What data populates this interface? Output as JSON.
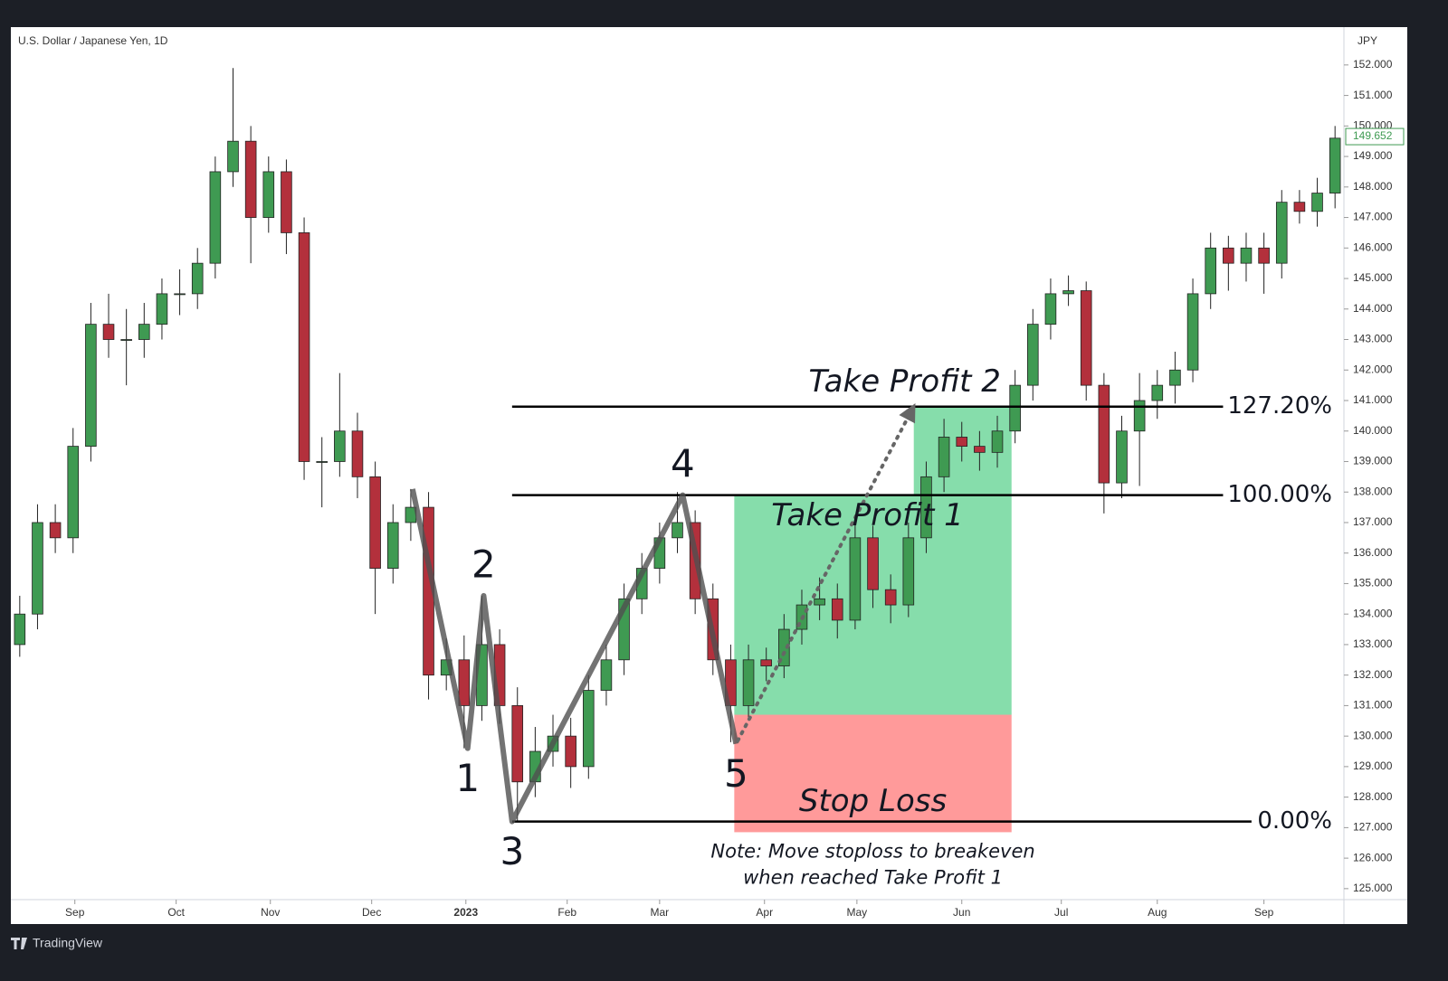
{
  "chart_data": {
    "type": "candlestick",
    "title": "U.S. Dollar / Japanese Yen, 1D",
    "y_axis_title": "JPY",
    "footer": "TradingView",
    "up_color": "#3f9a52",
    "down_color": "#b3303c",
    "open": [
      133,
      134,
      137,
      136.5,
      139.5,
      143.5,
      143,
      143,
      143.5,
      144.5,
      144.5,
      145.5,
      148.5,
      149.5,
      147,
      148.5,
      146.5,
      139,
      139,
      140,
      138.5,
      135.5,
      137,
      137.5,
      132,
      132.5,
      131,
      133,
      131,
      128.5,
      129.5,
      130,
      129,
      131.5,
      132.5,
      134.5,
      135.5,
      136.5,
      137,
      134.5,
      132.5,
      131,
      132.5,
      132.3,
      133.5,
      134.3,
      134.5,
      133.8,
      136.5,
      134.8,
      134.3,
      136.5,
      138.5,
      139.8,
      139.5,
      139.3,
      140,
      141.5,
      143.5,
      144.5,
      144.6,
      141.5,
      138.3,
      140,
      141,
      141.5,
      142,
      144.5,
      146,
      145.5,
      146,
      145.5,
      147.5,
      147.2,
      147.8
    ],
    "high": [
      134.6,
      137.6,
      137.6,
      140.1,
      144.2,
      144.5,
      144,
      144.2,
      145,
      145.3,
      146,
      149,
      151.9,
      150,
      149,
      148.9,
      147,
      139.8,
      141.9,
      140.6,
      139,
      137.6,
      138.1,
      138,
      133.2,
      133.3,
      134.6,
      133.5,
      131.6,
      130.3,
      130.7,
      130.6,
      132,
      133,
      135,
      136,
      137,
      138,
      137.4,
      135,
      133,
      133,
      132.9,
      134,
      134.8,
      135.2,
      135,
      137,
      136.9,
      135.3,
      137,
      139,
      140.4,
      140.3,
      140,
      140.5,
      142,
      144,
      145,
      145.1,
      144.9,
      141.9,
      140.5,
      141.9,
      142,
      142.6,
      145,
      146.5,
      146.4,
      146.5,
      146.5,
      147.9,
      147.9,
      148.3,
      150
    ],
    "low": [
      132.6,
      133.5,
      136,
      136,
      139,
      142.4,
      141.5,
      142.4,
      143,
      143.8,
      144,
      145,
      148,
      145.5,
      146.5,
      145.8,
      138.4,
      137.5,
      138.5,
      137.8,
      134,
      135,
      136.4,
      131.2,
      131.5,
      129.6,
      130.5,
      130.4,
      127.2,
      128,
      129,
      128.3,
      128.6,
      131,
      132,
      134,
      135,
      136,
      134,
      132,
      129.8,
      130.6,
      131.8,
      131.9,
      133,
      133.8,
      133.2,
      133.5,
      134.2,
      133.7,
      133.9,
      136,
      138,
      139,
      138.7,
      138.8,
      139.6,
      141,
      143,
      144.1,
      141,
      137.3,
      137.8,
      138.2,
      140.4,
      140.9,
      141.6,
      144,
      144.6,
      144.9,
      144.5,
      145,
      146.8,
      146.7,
      147.3
    ],
    "close": [
      134,
      137,
      136.5,
      139.5,
      143.5,
      143,
      143,
      143.5,
      144.5,
      144.5,
      145.5,
      148.5,
      149.5,
      147,
      148.5,
      146.5,
      139,
      139,
      140,
      138.5,
      135.5,
      137,
      137.5,
      132,
      132.5,
      131,
      133,
      131,
      128.5,
      129.5,
      130,
      129,
      131.5,
      132.5,
      134.5,
      135.5,
      136.5,
      137,
      134.5,
      132.5,
      131,
      132.5,
      132.3,
      133.5,
      134.3,
      134.5,
      133.8,
      136.5,
      134.8,
      134.3,
      136.5,
      138.5,
      139.8,
      139.5,
      139.3,
      140,
      141.5,
      143.5,
      144.5,
      144.6,
      141.5,
      138.3,
      140,
      141,
      141.5,
      142,
      144.5,
      146,
      145.5,
      146,
      145.5,
      147.5,
      147.2,
      147.8,
      149.6
    ],
    "xlim": [
      -0.5,
      74.5
    ],
    "xticks": [
      {
        "value": 3.1,
        "label": "Sep"
      },
      {
        "value": 8.8,
        "label": "Oct"
      },
      {
        "value": 14.1,
        "label": "Nov"
      },
      {
        "value": 19.8,
        "label": "Dec"
      },
      {
        "value": 25.1,
        "label": "2023",
        "bold": true
      },
      {
        "value": 30.8,
        "label": "Feb"
      },
      {
        "value": 36,
        "label": "Mar"
      },
      {
        "value": 41.9,
        "label": "Apr"
      },
      {
        "value": 47.1,
        "label": "May"
      },
      {
        "value": 53,
        "label": "Jun"
      },
      {
        "value": 58.6,
        "label": "Jul"
      },
      {
        "value": 64,
        "label": "Aug"
      },
      {
        "value": 70,
        "label": "Sep"
      }
    ],
    "ylim": [
      124.64,
      153.24
    ],
    "yticks": [
      {
        "value": 152,
        "label": "152.000"
      },
      {
        "value": 151,
        "label": "151.000"
      },
      {
        "value": 150,
        "label": "150.000"
      },
      {
        "value": 149,
        "label": "149.000"
      },
      {
        "value": 148,
        "label": "148.000"
      },
      {
        "value": 147,
        "label": "147.000"
      },
      {
        "value": 146,
        "label": "146.000"
      },
      {
        "value": 145,
        "label": "145.000"
      },
      {
        "value": 144,
        "label": "144.000"
      },
      {
        "value": 143,
        "label": "143.000"
      },
      {
        "value": 142,
        "label": "142.000"
      },
      {
        "value": 141,
        "label": "141.000"
      },
      {
        "value": 140,
        "label": "140.000"
      },
      {
        "value": 139,
        "label": "139.000"
      },
      {
        "value": 138,
        "label": "138.000"
      },
      {
        "value": 137,
        "label": "137.000"
      },
      {
        "value": 136,
        "label": "136.000"
      },
      {
        "value": 135,
        "label": "135.000"
      },
      {
        "value": 134,
        "label": "134.000"
      },
      {
        "value": 133,
        "label": "133.000"
      },
      {
        "value": 132,
        "label": "132.000"
      },
      {
        "value": 131,
        "label": "131.000"
      },
      {
        "value": 130,
        "label": "130.000"
      },
      {
        "value": 129,
        "label": "129.000"
      },
      {
        "value": 128,
        "label": "128.000"
      },
      {
        "value": 127,
        "label": "127.000"
      },
      {
        "value": 126,
        "label": "126.000"
      },
      {
        "value": 125,
        "label": "125.000"
      }
    ],
    "last_price": 149.652,
    "levels": [
      {
        "label": "127.20%",
        "price": 140.8,
        "start": 27.7,
        "end": 67.7
      },
      {
        "label": "100.00%",
        "price": 137.9,
        "start": 27.7,
        "end": 67.7
      },
      {
        "label": "0.00%",
        "price": 127.2,
        "start": 27.7,
        "end": 69.3
      }
    ],
    "wave_x": [
      22.1,
      25.2,
      26.1,
      27.7,
      37.3,
      40.3
    ],
    "wave_y": [
      138.1,
      129.6,
      134.6,
      127.2,
      137.9,
      129.75
    ],
    "wave_labels": [
      null,
      "1",
      "2",
      "3",
      "4",
      "5"
    ],
    "position": {
      "start": 40.2,
      "end": 55.8,
      "tp2_start": 50.3,
      "entry": 130.7,
      "stop": 126.85,
      "tp1": 137.9,
      "tp2": 140.8,
      "tp2_label": "Take Profit 2",
      "tp1_label": "Take Profit 1",
      "stop_label": "Stop Loss",
      "note": [
        "Note: Move stoploss to breakeven",
        "when reached Take Profit 1"
      ]
    },
    "arrow_x": [
      40.4,
      50.2
    ],
    "arrow_y": [
      129.85,
      140.7
    ]
  }
}
